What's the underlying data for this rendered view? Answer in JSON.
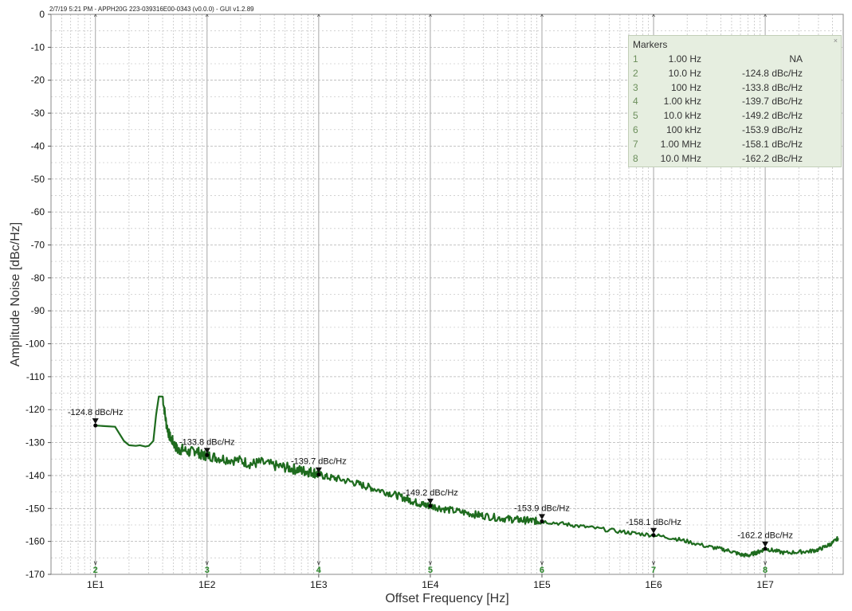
{
  "header": {
    "info": "2/7/19 5:21 PM - APPH20G 223-039316E00-0343 (v0.0.0) - GUI v1.2.89"
  },
  "markers_panel": {
    "title": "Markers",
    "close_glyph": "×",
    "rows": [
      {
        "index": "1",
        "freq": "1.00 Hz",
        "value": "NA"
      },
      {
        "index": "2",
        "freq": "10.0 Hz",
        "value": "-124.8 dBc/Hz"
      },
      {
        "index": "3",
        "freq": "100 Hz",
        "value": "-133.8 dBc/Hz"
      },
      {
        "index": "4",
        "freq": "1.00 kHz",
        "value": "-139.7 dBc/Hz"
      },
      {
        "index": "5",
        "freq": "10.0 kHz",
        "value": "-149.2 dBc/Hz"
      },
      {
        "index": "6",
        "freq": "100 kHz",
        "value": "-153.9 dBc/Hz"
      },
      {
        "index": "7",
        "freq": "1.00 MHz",
        "value": "-158.1 dBc/Hz"
      },
      {
        "index": "8",
        "freq": "10.0 MHz",
        "value": "-162.2 dBc/Hz"
      }
    ]
  },
  "chart_data": {
    "type": "line",
    "title": "",
    "xlabel": "Offset Frequency [Hz]",
    "ylabel": "Amplitude Noise [dBc/Hz]",
    "x_scale": "log",
    "xlim": [
      4,
      50000000
    ],
    "ylim": [
      -170,
      0
    ],
    "x_ticks": [
      {
        "value": 10,
        "label": "1E1"
      },
      {
        "value": 100,
        "label": "1E2"
      },
      {
        "value": 1000,
        "label": "1E3"
      },
      {
        "value": 10000,
        "label": "1E4"
      },
      {
        "value": 100000,
        "label": "1E5"
      },
      {
        "value": 1000000,
        "label": "1E6"
      },
      {
        "value": 10000000,
        "label": "1E7"
      }
    ],
    "y_ticks": [
      {
        "value": 0,
        "label": "0"
      },
      {
        "value": -10,
        "label": "-10"
      },
      {
        "value": -20,
        "label": "-20"
      },
      {
        "value": -30,
        "label": "-30"
      },
      {
        "value": -40,
        "label": "-40"
      },
      {
        "value": -50,
        "label": "-50"
      },
      {
        "value": -60,
        "label": "-60"
      },
      {
        "value": -70,
        "label": "-70"
      },
      {
        "value": -80,
        "label": "-80"
      },
      {
        "value": -90,
        "label": "-90"
      },
      {
        "value": -100,
        "label": "-100"
      },
      {
        "value": -110,
        "label": "-110"
      },
      {
        "value": -120,
        "label": "-120"
      },
      {
        "value": -130,
        "label": "-130"
      },
      {
        "value": -140,
        "label": "-140"
      },
      {
        "value": -150,
        "label": "-150"
      },
      {
        "value": -160,
        "label": "-160"
      },
      {
        "value": -170,
        "label": "-170"
      }
    ],
    "grid": true,
    "line_color": "#1e6b1e",
    "marker_color": "#2e8b2e",
    "series": [
      {
        "name": "",
        "x": [
          10,
          12,
          15,
          18,
          20,
          23,
          25,
          28,
          30,
          33,
          35,
          37,
          40,
          43,
          46,
          50,
          55,
          60,
          70,
          80,
          90,
          100,
          120,
          150,
          200,
          250,
          300,
          400,
          500,
          600,
          700,
          800,
          900,
          1000,
          1200,
          1500,
          2000,
          2500,
          3000,
          4000,
          5000,
          6000,
          7000,
          8000,
          9000,
          10000,
          12000,
          15000,
          20000,
          25000,
          30000,
          40000,
          50000,
          60000,
          70000,
          80000,
          90000,
          100000,
          150000,
          200000,
          300000,
          500000,
          700000,
          1000000,
          1500000,
          2000000,
          3000000,
          4000000,
          5000000,
          6000000,
          7000000,
          8000000,
          9000000,
          10000000,
          12000000,
          15000000,
          20000000,
          25000000,
          30000000,
          35000000,
          40000000,
          45000000
        ],
        "y": [
          -124.8,
          -125.0,
          -125.2,
          -129.5,
          -130.8,
          -131.0,
          -130.8,
          -131.2,
          -131.0,
          -129.5,
          -121.5,
          -116.0,
          -116.0,
          -124.0,
          -128.0,
          -130.0,
          -132.5,
          -132.0,
          -133.0,
          -132.2,
          -134.0,
          -133.8,
          -134.5,
          -135.0,
          -135.5,
          -136.5,
          -136.0,
          -137.0,
          -137.5,
          -138.0,
          -138.5,
          -138.8,
          -139.0,
          -139.7,
          -140.5,
          -141.0,
          -142.0,
          -143.0,
          -143.8,
          -145.0,
          -146.0,
          -147.0,
          -147.8,
          -148.5,
          -149.0,
          -149.2,
          -149.8,
          -150.5,
          -151.2,
          -151.8,
          -152.2,
          -152.8,
          -153.2,
          -153.4,
          -153.6,
          -153.7,
          -153.8,
          -153.9,
          -154.6,
          -155.2,
          -156.0,
          -157.0,
          -157.6,
          -158.1,
          -159.0,
          -160.0,
          -161.5,
          -162.3,
          -163.0,
          -164.0,
          -164.3,
          -163.6,
          -163.0,
          -162.2,
          -162.8,
          -163.5,
          -163.2,
          -163.0,
          -162.5,
          -161.5,
          -160.5,
          -159.0
        ]
      }
    ],
    "markers": [
      {
        "id": "2",
        "x": 10,
        "y": -124.8,
        "label": "-124.8 dBc/Hz"
      },
      {
        "id": "3",
        "x": 100,
        "y": -133.8,
        "label": "-133.8 dBc/Hz"
      },
      {
        "id": "4",
        "x": 1000,
        "y": -139.7,
        "label": "-139.7 dBc/Hz"
      },
      {
        "id": "5",
        "x": 10000,
        "y": -149.2,
        "label": "-149.2 dBc/Hz"
      },
      {
        "id": "6",
        "x": 100000,
        "y": -153.9,
        "label": "-153.9 dBc/Hz"
      },
      {
        "id": "7",
        "x": 1000000,
        "y": -158.1,
        "label": "-158.1 dBc/Hz"
      },
      {
        "id": "8",
        "x": 10000000,
        "y": -162.2,
        "label": "-162.2 dBc/Hz"
      }
    ]
  }
}
